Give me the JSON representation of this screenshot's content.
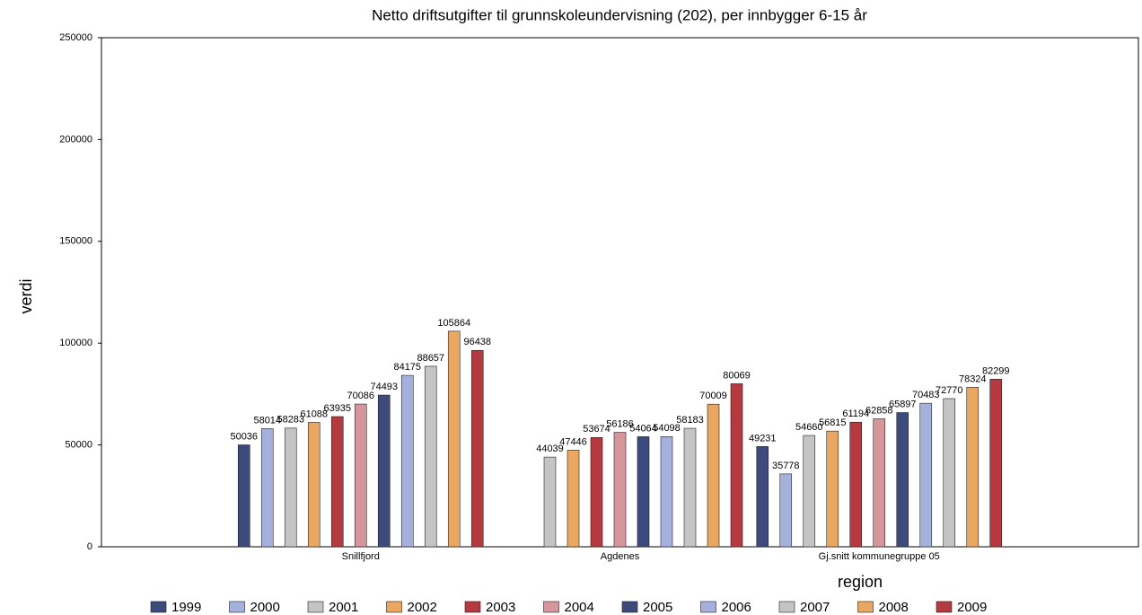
{
  "chart_data": {
    "type": "bar",
    "title": "Netto driftsutgifter til grunnskoleundervisning (202), per innbygger 6-15 år",
    "y_label": "verdi",
    "x_label": "region",
    "categories": [
      "Snillfjord",
      "Agdenes",
      "Gj.snitt kommunegruppe 05"
    ],
    "ylim": [
      0,
      250000
    ],
    "yticks": [
      0,
      50000,
      100000,
      150000,
      200000,
      250000
    ],
    "series": [
      {
        "name": "1999",
        "color": "#3d4b7c",
        "values": [
          50036,
          null,
          49231
        ]
      },
      {
        "name": "2000",
        "color": "#a4b1dc",
        "values": [
          58014,
          null,
          35778
        ]
      },
      {
        "name": "2001",
        "color": "#c4c4c4",
        "values": [
          58283,
          44039,
          54660
        ]
      },
      {
        "name": "2002",
        "color": "#eaa762",
        "values": [
          61088,
          47446,
          56815
        ]
      },
      {
        "name": "2003",
        "color": "#b53a40",
        "values": [
          63935,
          53674,
          61194
        ]
      },
      {
        "name": "2004",
        "color": "#d5969c",
        "values": [
          70086,
          56186,
          62858
        ]
      },
      {
        "name": "2005",
        "color": "#3d4b7c",
        "values": [
          74493,
          54064,
          65897
        ]
      },
      {
        "name": "2006",
        "color": "#a4b1dc",
        "values": [
          84175,
          54098,
          70483
        ]
      },
      {
        "name": "2007",
        "color": "#c4c4c4",
        "values": [
          88657,
          58183,
          72770
        ]
      },
      {
        "name": "2008",
        "color": "#eaa762",
        "values": [
          105864,
          70009,
          78324
        ]
      },
      {
        "name": "2009",
        "color": "#b53a40",
        "values": [
          96438,
          80069,
          82299
        ]
      }
    ]
  }
}
